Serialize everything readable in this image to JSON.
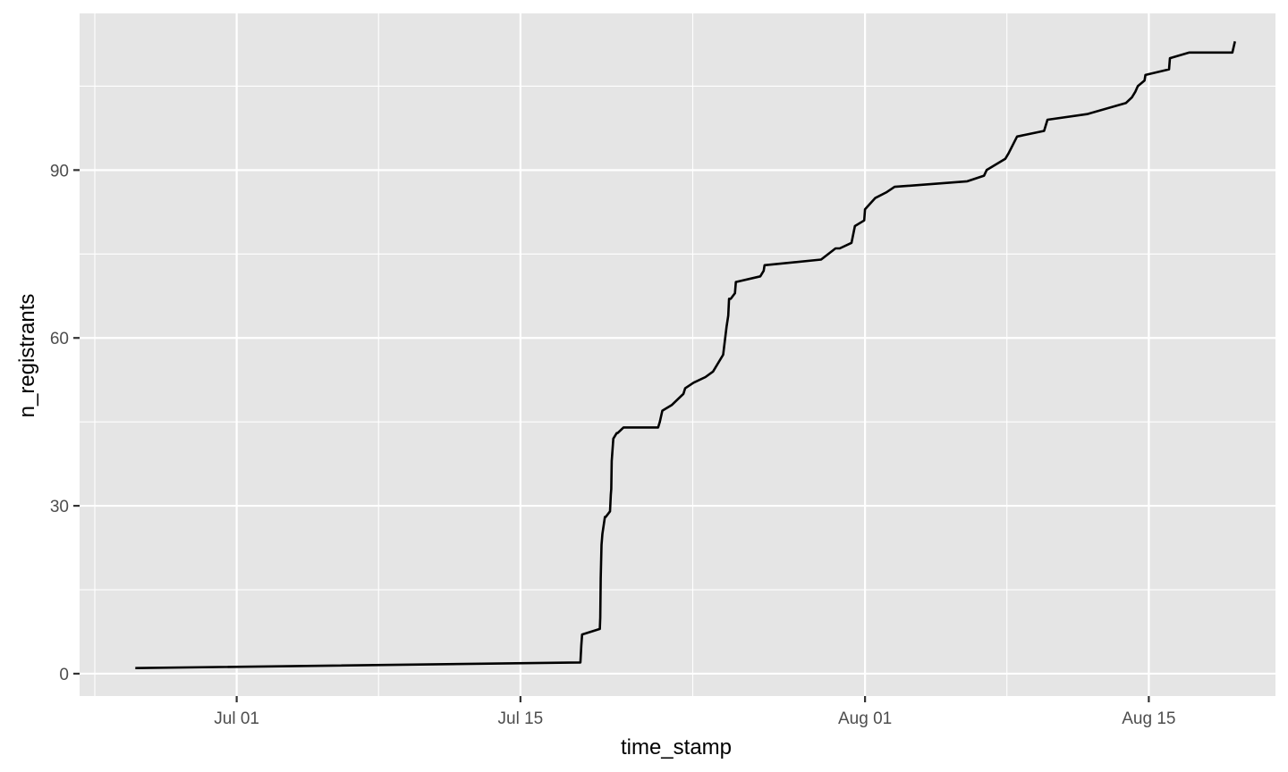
{
  "chart_data": {
    "type": "line",
    "title": "",
    "xlabel": "time_stamp",
    "ylabel": "n_registrants",
    "x_type": "date",
    "xlim": [
      "2026-06-23T06:00",
      "2026-08-21T06:00"
    ],
    "ylim": [
      -4,
      118
    ],
    "x_ticks": [
      {
        "date": "2026-07-01T00:00",
        "label": "Jul 01"
      },
      {
        "date": "2026-07-15T00:00",
        "label": "Jul 15"
      },
      {
        "date": "2026-08-01T00:00",
        "label": "Aug 01"
      },
      {
        "date": "2026-08-15T00:00",
        "label": "Aug 15"
      }
    ],
    "y_ticks": [
      0,
      30,
      60,
      90
    ],
    "grid": true,
    "legend": "none",
    "colors": {
      "panel": "#e5e5e5",
      "grid": "#ffffff",
      "line": "#000000",
      "tick": "#333333"
    },
    "series": [
      {
        "x": [
          "2026-06-26T00:00",
          "2026-07-17T23:00",
          "2026-07-18T00:00",
          "2026-07-18T01:00",
          "2026-07-18T22:00",
          "2026-07-18T22:30",
          "2026-07-18T23:00",
          "2026-07-19T00:00",
          "2026-07-19T00:30",
          "2026-07-19T01:00",
          "2026-07-19T04:00",
          "2026-07-19T05:00",
          "2026-07-19T10:00",
          "2026-07-19T11:00",
          "2026-07-19T11:30",
          "2026-07-19T12:00",
          "2026-07-19T14:00",
          "2026-07-19T18:00",
          "2026-07-19T19:00",
          "2026-07-20T02:00",
          "2026-07-21T19:00",
          "2026-07-21T21:00",
          "2026-07-22T00:00",
          "2026-07-22T11:00",
          "2026-07-23T01:00",
          "2026-07-23T03:00",
          "2026-07-23T13:00",
          "2026-07-24T03:00",
          "2026-07-24T12:00",
          "2026-07-25T00:00",
          "2026-07-25T04:00",
          "2026-07-25T06:00",
          "2026-07-25T07:00",
          "2026-07-25T09:00",
          "2026-07-25T14:00",
          "2026-07-25T15:00",
          "2026-07-26T20:00",
          "2026-07-27T00:00",
          "2026-07-27T01:00",
          "2026-07-29T20:00",
          "2026-07-30T13:00",
          "2026-07-30T18:00",
          "2026-07-31T08:00",
          "2026-07-31T12:00",
          "2026-07-31T23:00",
          "2026-08-01T00:00",
          "2026-08-01T12:00",
          "2026-08-02T01:00",
          "2026-08-02T11:00",
          "2026-08-06T01:00",
          "2026-08-06T21:00",
          "2026-08-07T00:00",
          "2026-08-07T22:00",
          "2026-08-08T02:00",
          "2026-08-08T12:00",
          "2026-08-09T20:00",
          "2026-08-10T00:00",
          "2026-08-11T23:00",
          "2026-08-13T21:00",
          "2026-08-14T04:00",
          "2026-08-14T08:00",
          "2026-08-14T11:00",
          "2026-08-14T19:00",
          "2026-08-14T20:00",
          "2026-08-16T00:00",
          "2026-08-16T01:00",
          "2026-08-17T00:00",
          "2026-08-19T03:00",
          "2026-08-19T06:00"
        ],
        "y": [
          1,
          2,
          5,
          7,
          8,
          10,
          17,
          23,
          24,
          25,
          28,
          28,
          29,
          32,
          33,
          38,
          42,
          43,
          43,
          44,
          44,
          45,
          47,
          48,
          50,
          51,
          52,
          53,
          54,
          57,
          62,
          64,
          67,
          67,
          68,
          70,
          71,
          72,
          73,
          74,
          76,
          76,
          77,
          80,
          81,
          83,
          85,
          86,
          87,
          88,
          89,
          90,
          92,
          93,
          96,
          97,
          99,
          100,
          102,
          103,
          104,
          105,
          106,
          107,
          108,
          110,
          111,
          111,
          113
        ]
      }
    ]
  }
}
